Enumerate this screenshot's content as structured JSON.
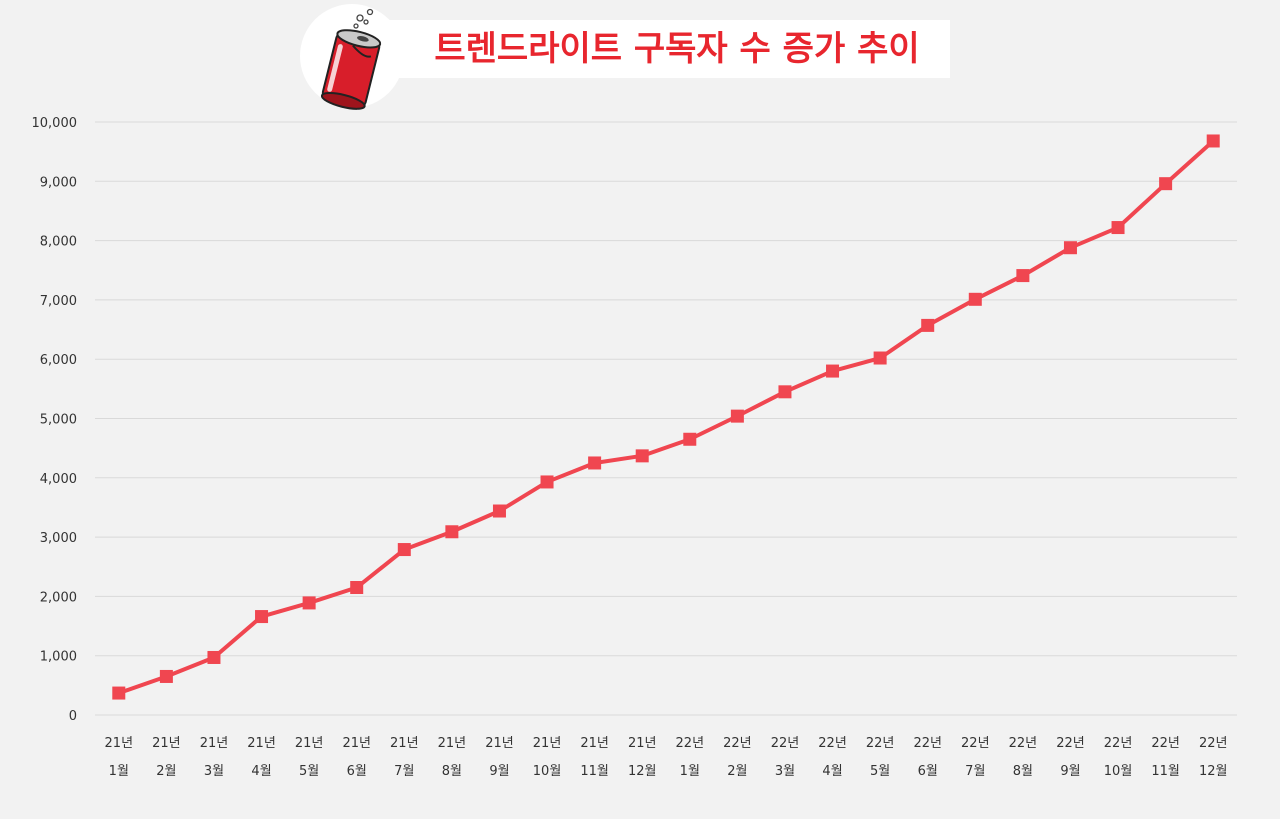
{
  "chart_data": {
    "type": "line",
    "title": "트렌드라이트 구독자 수 증가 추이",
    "xlabel": "",
    "ylabel": "",
    "categories": [
      [
        "21년",
        "1월"
      ],
      [
        "21년",
        "2월"
      ],
      [
        "21년",
        "3월"
      ],
      [
        "21년",
        "4월"
      ],
      [
        "21년",
        "5월"
      ],
      [
        "21년",
        "6월"
      ],
      [
        "21년",
        "7월"
      ],
      [
        "21년",
        "8월"
      ],
      [
        "21년",
        "9월"
      ],
      [
        "21년",
        "10월"
      ],
      [
        "21년",
        "11월"
      ],
      [
        "21년",
        "12월"
      ],
      [
        "22년",
        "1월"
      ],
      [
        "22년",
        "2월"
      ],
      [
        "22년",
        "3월"
      ],
      [
        "22년",
        "4월"
      ],
      [
        "22년",
        "5월"
      ],
      [
        "22년",
        "6월"
      ],
      [
        "22년",
        "7월"
      ],
      [
        "22년",
        "8월"
      ],
      [
        "22년",
        "9월"
      ],
      [
        "22년",
        "10월"
      ],
      [
        "22년",
        "11월"
      ],
      [
        "22년",
        "12월"
      ]
    ],
    "series": [
      {
        "values": [
          370,
          650,
          970,
          1660,
          1890,
          2150,
          2790,
          3090,
          3440,
          3930,
          4250,
          4370,
          4650,
          5040,
          5450,
          5800,
          6020,
          6570,
          7010,
          7410,
          7880,
          8220,
          8960,
          9680
        ]
      }
    ],
    "ylim": [
      0,
      10000
    ],
    "yticks": [
      0,
      1000,
      2000,
      3000,
      4000,
      5000,
      6000,
      7000,
      8000,
      9000,
      10000
    ],
    "ytick_labels": [
      "0",
      "1,000",
      "2,000",
      "3,000",
      "4,000",
      "5,000",
      "6,000",
      "7,000",
      "8,000",
      "9,000",
      "10,000"
    ],
    "grid": true,
    "legend": "none",
    "colors": {
      "line": "#f04650",
      "marker": "#f04650",
      "title": "#e8262e",
      "grid": "#d9d9d9",
      "background": "#f2f2f2"
    }
  },
  "logo": {
    "icon": "soda-can-icon"
  }
}
